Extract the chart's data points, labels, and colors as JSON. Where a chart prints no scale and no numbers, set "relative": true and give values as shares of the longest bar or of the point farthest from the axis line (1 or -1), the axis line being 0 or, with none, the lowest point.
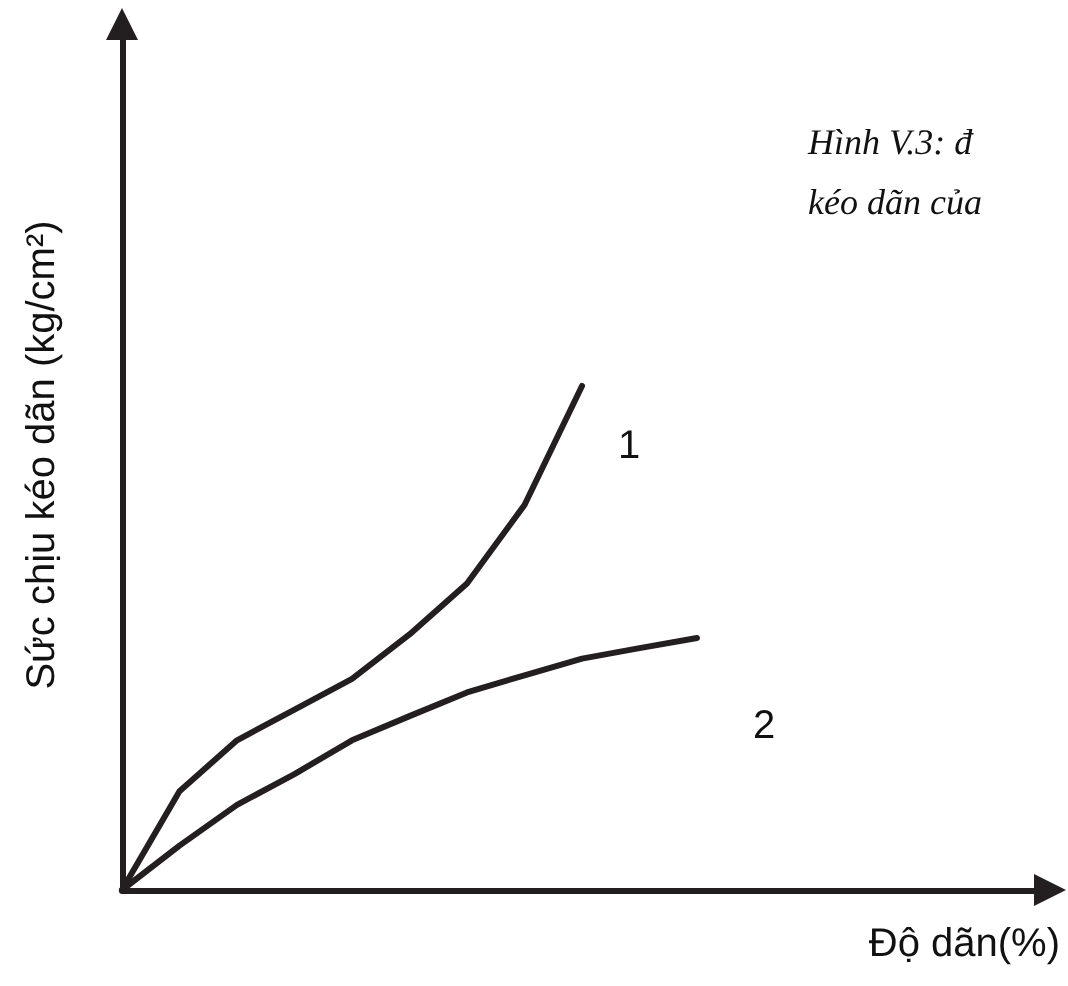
{
  "chart_data": {
    "type": "line",
    "relative": true,
    "xlabel": "Độ dãn(%)",
    "ylabel": "Sức chịu kéo dãn (kg/cm²)",
    "annotations": [
      "Hình V.3: đ",
      "kéo dãn của"
    ],
    "categories": [
      null,
      null,
      null,
      null,
      null,
      null,
      null,
      null,
      null,
      null,
      null,
      null,
      null,
      null,
      null,
      null,
      null
    ],
    "marker": "none",
    "line_style": "solid",
    "series": [
      {
        "name": "1",
        "color": "#231f20",
        "values": [
          0,
          0.196,
          0.297,
          0.358,
          0.419,
          0.507,
          0.608,
          0.764,
          1,
          null,
          null,
          null,
          null,
          null,
          null,
          null,
          null
        ]
      },
      {
        "name": "2",
        "color": "#231f20",
        "values": [
          0,
          0.088,
          0.169,
          0.23,
          0.297,
          0.345,
          0.392,
          0.426,
          0.459,
          0.48,
          0.5,
          null,
          null,
          null,
          null,
          null,
          null
        ]
      }
    ]
  }
}
